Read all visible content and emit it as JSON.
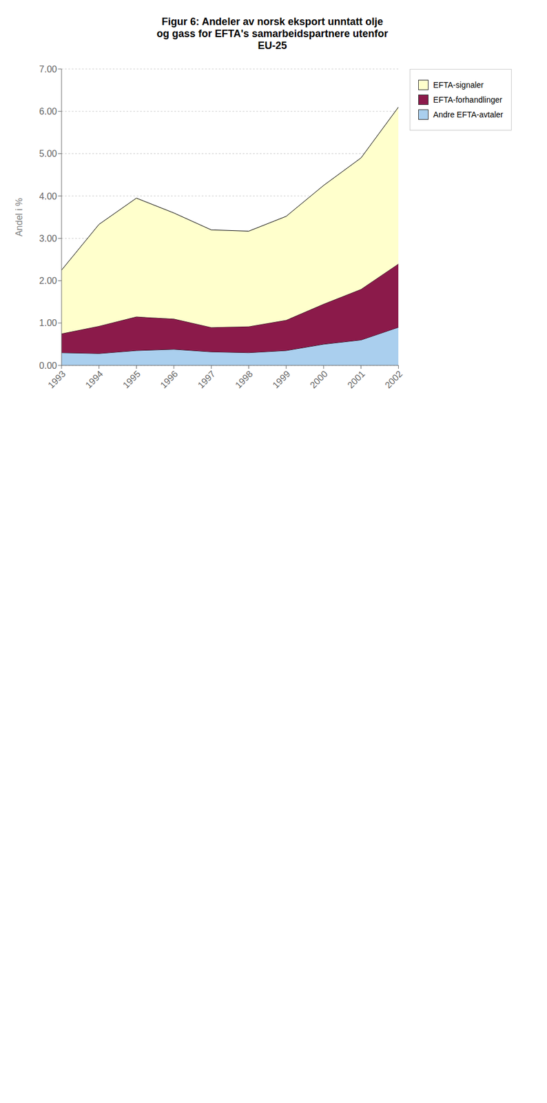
{
  "chart_data": {
    "type": "area",
    "title": "Figur 6: Andeler av norsk eksport unntatt olje\nog gass for EFTA's samarbeidspartnere utenfor\nEU-25",
    "ylabel": "Andel i %",
    "x": [
      1993,
      1994,
      1995,
      1996,
      1997,
      1998,
      1999,
      2000,
      2001,
      2002
    ],
    "series": [
      {
        "name": "Andre EFTA-avtaler",
        "color": "#aacfee",
        "values": [
          0.3,
          0.28,
          0.35,
          0.38,
          0.32,
          0.3,
          0.35,
          0.5,
          0.6,
          0.9
        ]
      },
      {
        "name": "EFTA-forhandlinger",
        "color": "#8b1a4a",
        "values": [
          0.45,
          0.65,
          0.8,
          0.72,
          0.58,
          0.62,
          0.72,
          0.95,
          1.2,
          1.5
        ]
      },
      {
        "name": "EFTA-signaler",
        "color": "#ffffcc",
        "values": [
          1.5,
          2.4,
          2.8,
          2.5,
          2.3,
          2.25,
          2.45,
          2.8,
          3.1,
          3.7
        ]
      }
    ],
    "xlim": [
      1993,
      2002
    ],
    "xticks": [
      1993,
      1994,
      1995,
      1996,
      1997,
      1998,
      1999,
      2000,
      2001,
      2002
    ],
    "ylim": [
      0.0,
      7.0
    ],
    "yticks": [
      {
        "value": 0.0,
        "label": "0.00"
      },
      {
        "value": 1.0,
        "label": "1.00"
      },
      {
        "value": 2.0,
        "label": "2.00"
      },
      {
        "value": 3.0,
        "label": "3.00"
      },
      {
        "value": 4.0,
        "label": "4.00"
      },
      {
        "value": 5.0,
        "label": "5.00"
      },
      {
        "value": 6.0,
        "label": "6.00"
      },
      {
        "value": 7.0,
        "label": "7.00"
      }
    ],
    "stacked": true,
    "grid": true,
    "legend": "right"
  }
}
